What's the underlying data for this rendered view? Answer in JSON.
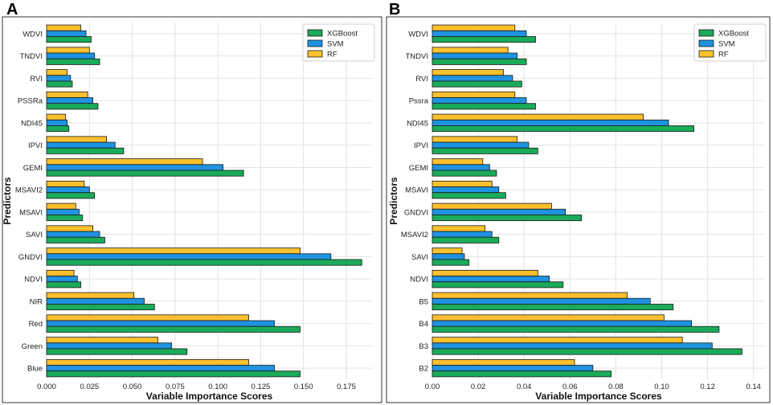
{
  "colors": {
    "XGBoost": "#1aab5a",
    "SVM": "#1f92e0",
    "RF": "#fbc02d"
  },
  "chart_data": [
    {
      "panel": "A",
      "type": "bar",
      "orientation": "horizontal",
      "xlabel": "Variable Importance Scores",
      "ylabel": "Predictors",
      "xlim": [
        0,
        0.19
      ],
      "xticks": [
        0,
        0.025,
        0.05,
        0.075,
        0.1,
        0.125,
        0.15,
        0.175
      ],
      "xtick_labels": [
        "0.000",
        "0.025",
        "0.050",
        "0.075",
        "0.100",
        "0.125",
        "0.150",
        "0.175"
      ],
      "legend": [
        "XGBoost",
        "SVM",
        "RF"
      ],
      "legend_position": "top-right",
      "categories": [
        "WDVI",
        "TNDVI",
        "RVI",
        "PSSRa",
        "NDI45",
        "IPVI",
        "GEMI",
        "MSAVI2",
        "MSAVI",
        "SAVI",
        "GNDVI",
        "NDVI",
        "NIR",
        "Red",
        "Green",
        "Blue"
      ],
      "series": [
        {
          "name": "RF",
          "values": [
            0.02,
            0.025,
            0.012,
            0.024,
            0.011,
            0.035,
            0.091,
            0.022,
            0.017,
            0.027,
            0.148,
            0.016,
            0.051,
            0.118,
            0.065,
            0.118
          ]
        },
        {
          "name": "SVM",
          "values": [
            0.023,
            0.028,
            0.014,
            0.027,
            0.012,
            0.04,
            0.103,
            0.025,
            0.019,
            0.031,
            0.166,
            0.018,
            0.057,
            0.133,
            0.073,
            0.133
          ]
        },
        {
          "name": "XGBoost",
          "values": [
            0.026,
            0.031,
            0.015,
            0.03,
            0.013,
            0.045,
            0.115,
            0.028,
            0.021,
            0.034,
            0.184,
            0.02,
            0.063,
            0.148,
            0.082,
            0.148
          ]
        }
      ]
    },
    {
      "panel": "B",
      "type": "bar",
      "orientation": "horizontal",
      "xlabel": "Variable Importance Scores",
      "ylabel": "Predictors",
      "xlim": [
        0,
        0.145
      ],
      "xticks": [
        0,
        0.02,
        0.04,
        0.06,
        0.08,
        0.1,
        0.12,
        0.14
      ],
      "xtick_labels": [
        "0.00",
        "0.02",
        "0.04",
        "0.06",
        "0.08",
        "0.10",
        "0.12",
        "0.14"
      ],
      "legend": [
        "XGBoost",
        "SVM",
        "RF"
      ],
      "legend_position": "top-right",
      "categories": [
        "WDVI",
        "TNDVI",
        "RVI",
        "Pssra",
        "NDI45",
        "IPVI",
        "GEMI",
        "MSAVI",
        "GNDVI",
        "MSAVI2",
        "SAVI",
        "NDVI",
        "B5",
        "B4",
        "B3",
        "B2"
      ],
      "series": [
        {
          "name": "RF",
          "values": [
            0.036,
            0.033,
            0.031,
            0.036,
            0.092,
            0.037,
            0.022,
            0.026,
            0.052,
            0.023,
            0.013,
            0.046,
            0.085,
            0.101,
            0.109,
            0.062
          ]
        },
        {
          "name": "SVM",
          "values": [
            0.041,
            0.037,
            0.035,
            0.041,
            0.103,
            0.042,
            0.025,
            0.029,
            0.058,
            0.026,
            0.014,
            0.051,
            0.095,
            0.113,
            0.122,
            0.07
          ]
        },
        {
          "name": "XGBoost",
          "values": [
            0.045,
            0.041,
            0.039,
            0.045,
            0.114,
            0.046,
            0.028,
            0.032,
            0.065,
            0.029,
            0.016,
            0.057,
            0.105,
            0.125,
            0.135,
            0.078
          ]
        }
      ]
    }
  ]
}
